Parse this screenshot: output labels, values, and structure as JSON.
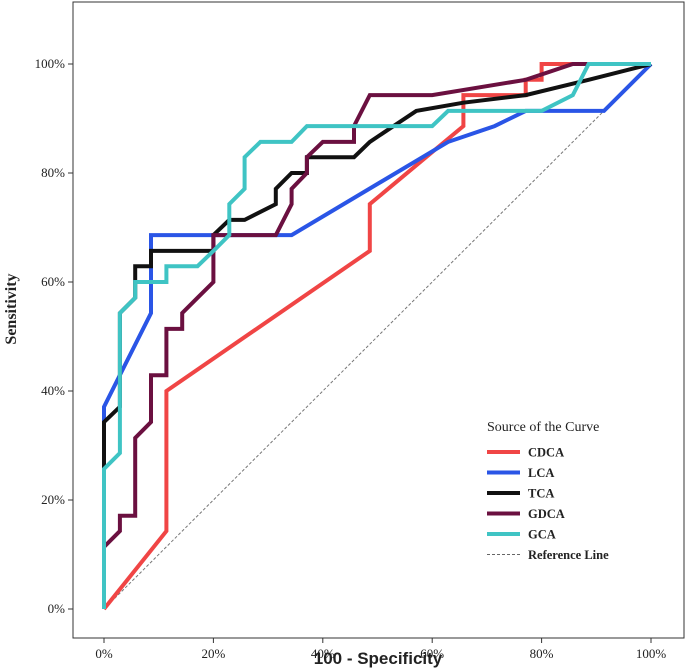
{
  "chart_data": {
    "type": "line",
    "xlabel": "100 - Specificity",
    "ylabel": "Sensitivity",
    "xlim": [
      0,
      100
    ],
    "ylim": [
      0,
      100
    ],
    "x_ticks": [
      "0%",
      "20%",
      "40%",
      "60%",
      "80%",
      "100%"
    ],
    "y_ticks": [
      "0%",
      "20%",
      "40%",
      "60%",
      "80%",
      "100%"
    ],
    "grid": false,
    "legend": {
      "title": "Source of the Curve",
      "placement": "bottom-right"
    },
    "series": [
      {
        "name": "CDCA",
        "color": "#f04545",
        "x": [
          0,
          11.4,
          11.4,
          48.6,
          48.6,
          65.7,
          65.7,
          77.1,
          77.1,
          80,
          80,
          100
        ],
        "y": [
          0,
          14.3,
          40,
          65.7,
          74.3,
          88.6,
          94.3,
          94.3,
          97.1,
          97.1,
          100,
          100
        ]
      },
      {
        "name": "LCA",
        "color": "#2a55e6",
        "x": [
          0,
          0,
          8.6,
          8.6,
          34.3,
          62.9,
          71.4,
          77.1,
          91.4,
          100
        ],
        "y": [
          0,
          37.1,
          54.3,
          68.6,
          68.6,
          85.7,
          88.6,
          91.4,
          91.4,
          100
        ]
      },
      {
        "name": "TCA",
        "color": "#111111",
        "x": [
          0,
          0,
          2.9,
          2.9,
          5.7,
          5.7,
          8.6,
          8.6,
          20,
          20,
          22.9,
          25.7,
          31.4,
          31.4,
          34.3,
          37.1,
          37.1,
          45.7,
          48.6,
          57.1,
          65.7,
          77.1,
          88.6,
          100
        ],
        "y": [
          0,
          34.3,
          37.1,
          54.3,
          57.1,
          62.9,
          62.9,
          65.7,
          65.7,
          68.6,
          71.4,
          71.4,
          74.3,
          77.1,
          80,
          80,
          82.9,
          82.9,
          85.7,
          91.4,
          92.9,
          94.3,
          97.1,
          100
        ]
      },
      {
        "name": "GDCA",
        "color": "#6b1040",
        "x": [
          0,
          0,
          2.9,
          2.9,
          5.7,
          5.7,
          8.6,
          8.6,
          11.4,
          11.4,
          14.3,
          14.3,
          17.1,
          20,
          20,
          31.4,
          34.3,
          34.3,
          37.1,
          37.1,
          40,
          45.7,
          45.7,
          48.6,
          60,
          77.1,
          85.7,
          100
        ],
        "y": [
          0,
          11.4,
          14.3,
          17.1,
          17.1,
          31.4,
          34.3,
          42.9,
          42.9,
          51.4,
          51.4,
          54.3,
          57.1,
          60,
          68.6,
          68.6,
          74.3,
          77.1,
          80,
          82.9,
          85.7,
          85.7,
          88.6,
          94.3,
          94.3,
          97.1,
          100,
          100
        ]
      },
      {
        "name": "GCA",
        "color": "#3fc4c4",
        "x": [
          0,
          0,
          2.9,
          2.9,
          5.7,
          5.7,
          11.4,
          11.4,
          17.1,
          20,
          22.9,
          22.9,
          25.7,
          25.7,
          28.6,
          34.3,
          37.1,
          60,
          62.9,
          80,
          85.7,
          88.6,
          100
        ],
        "y": [
          0,
          25.7,
          28.6,
          54.3,
          57.1,
          60,
          60,
          62.9,
          62.9,
          65.7,
          68.6,
          74.3,
          77.1,
          82.9,
          85.7,
          85.7,
          88.6,
          88.6,
          91.4,
          91.4,
          94.3,
          100,
          100
        ]
      }
    ],
    "reference_line": {
      "name": "Reference Line",
      "style": "dashed",
      "color": "#777777",
      "x": [
        0,
        100
      ],
      "y": [
        0,
        100
      ]
    }
  }
}
